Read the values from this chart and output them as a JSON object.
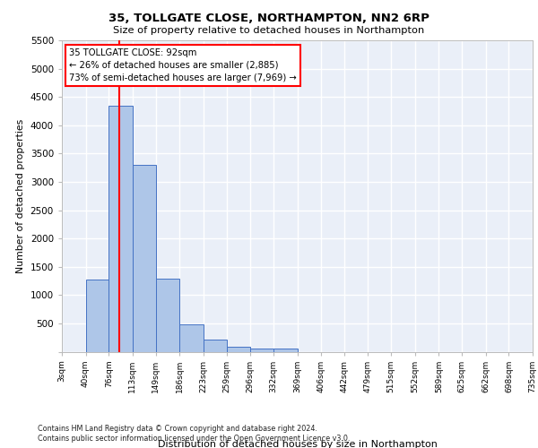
{
  "title1": "35, TOLLGATE CLOSE, NORTHAMPTON, NN2 6RP",
  "title2": "Size of property relative to detached houses in Northampton",
  "xlabel": "Distribution of detached houses by size in Northampton",
  "ylabel": "Number of detached properties",
  "footnote": "Contains HM Land Registry data © Crown copyright and database right 2024.\nContains public sector information licensed under the Open Government Licence v3.0.",
  "bin_labels": [
    "3sqm",
    "40sqm",
    "76sqm",
    "113sqm",
    "149sqm",
    "186sqm",
    "223sqm",
    "259sqm",
    "296sqm",
    "332sqm",
    "369sqm",
    "406sqm",
    "442sqm",
    "479sqm",
    "515sqm",
    "552sqm",
    "589sqm",
    "625sqm",
    "662sqm",
    "698sqm",
    "735sqm"
  ],
  "bar_values": [
    0,
    1270,
    4340,
    3300,
    1290,
    480,
    210,
    90,
    60,
    60,
    0,
    0,
    0,
    0,
    0,
    0,
    0,
    0,
    0,
    0
  ],
  "bar_color": "#aec6e8",
  "bar_edge_color": "#4472c4",
  "bg_color": "#eaeff8",
  "grid_color": "#ffffff",
  "annotation_text": "35 TOLLGATE CLOSE: 92sqm\n← 26% of detached houses are smaller (2,885)\n73% of semi-detached houses are larger (7,969) →",
  "property_sqm": 92,
  "ylim": [
    0,
    5500
  ],
  "yticks": [
    0,
    500,
    1000,
    1500,
    2000,
    2500,
    3000,
    3500,
    4000,
    4500,
    5000,
    5500
  ],
  "bin_edges": [
    3,
    40,
    76,
    113,
    149,
    186,
    223,
    259,
    296,
    332,
    369,
    406,
    442,
    479,
    515,
    552,
    589,
    625,
    662,
    698,
    735
  ]
}
